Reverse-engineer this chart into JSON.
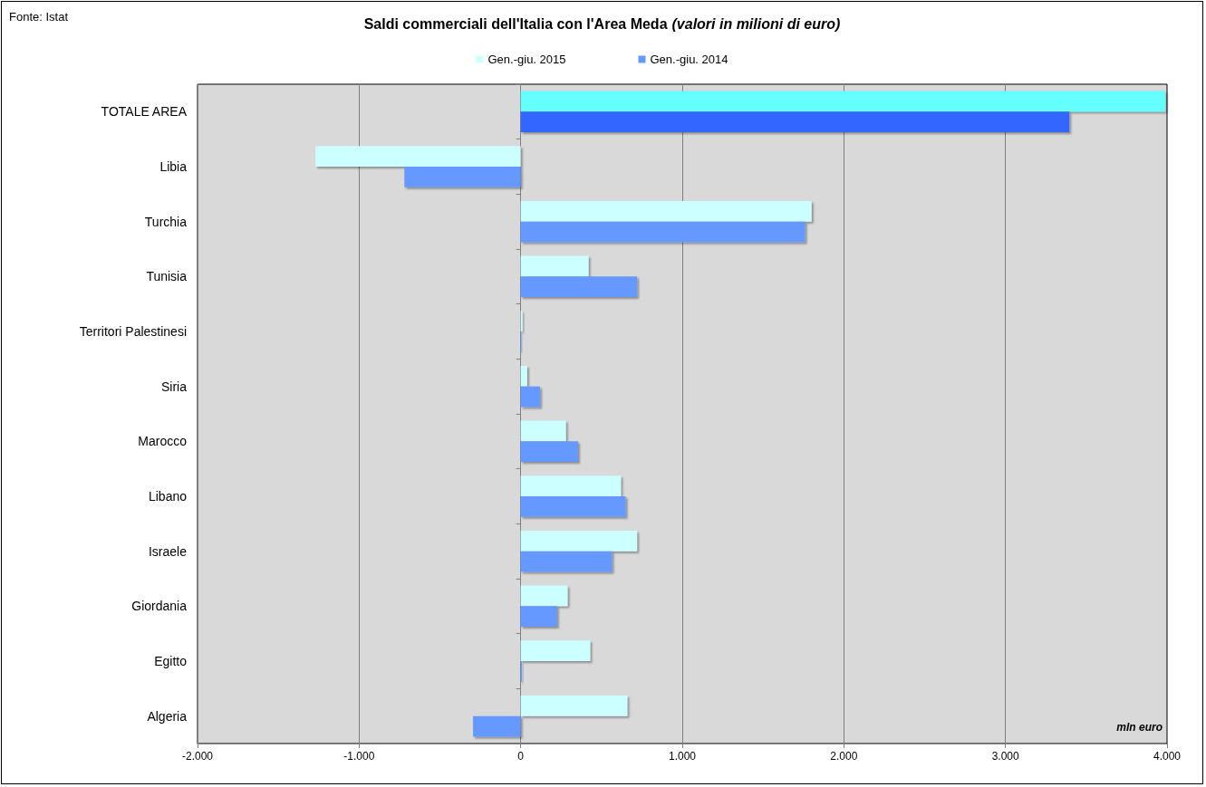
{
  "chart_data": {
    "type": "bar",
    "orientation": "horizontal",
    "title": "Saldi commerciali dell'Italia con l'Area Meda",
    "subtitle": "(valori in milioni di euro)",
    "categories": [
      "TOTALE AREA",
      "Libia",
      "Turchia",
      "Tunisia",
      "Territori Palestinesi",
      "Siria",
      "Marocco",
      "Libano",
      "Israele",
      "Giordania",
      "Egitto",
      "Algeria"
    ],
    "series": [
      {
        "name": "Gen.-giu. 2015",
        "color": "#ccffff",
        "colors": [
          "#66ffff",
          "#ccffff",
          "#ccffff",
          "#ccffff",
          "#ccffff",
          "#ccffff",
          "#ccffff",
          "#ccffff",
          "#ccffff",
          "#ccffff",
          "#ccffff",
          "#ccffff"
        ],
        "values": [
          3990,
          -1270,
          1800,
          420,
          10,
          40,
          280,
          620,
          720,
          290,
          430,
          660
        ]
      },
      {
        "name": "Gen.-giu. 2014",
        "color": "#6699ff",
        "colors": [
          "#3366ff",
          "#6699ff",
          "#6699ff",
          "#6699ff",
          "#6699ff",
          "#6699ff",
          "#6699ff",
          "#6699ff",
          "#6699ff",
          "#6699ff",
          "#6699ff",
          "#6699ff"
        ],
        "values": [
          3395,
          -720,
          1760,
          720,
          5,
          120,
          355,
          650,
          565,
          225,
          8,
          -295
        ]
      }
    ],
    "xlim": [
      -2000,
      4000
    ],
    "xticks": [
      {
        "value": -2000,
        "label": "-2.000"
      },
      {
        "value": -1000,
        "label": "-1.000"
      },
      0,
      {
        "value": 1000,
        "label": "1.000"
      },
      {
        "value": 2000,
        "label": "2.000"
      },
      {
        "value": 3000,
        "label": "3.000"
      },
      {
        "value": 4000,
        "label": "4.000"
      }
    ],
    "grid": "x",
    "legend": "top",
    "annotations": [
      "Fonte: Istat",
      "mln euro"
    ]
  }
}
